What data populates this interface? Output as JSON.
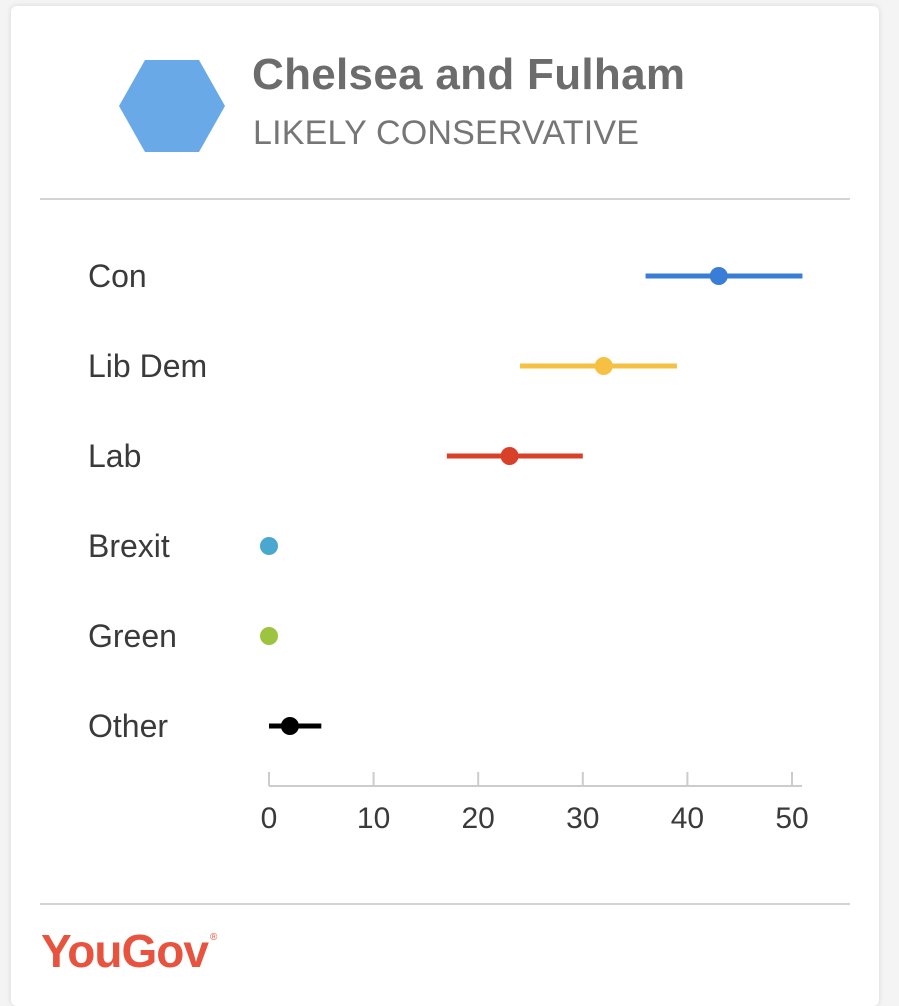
{
  "header": {
    "title": "Chelsea and Fulham",
    "subtitle": "LIKELY CONSERVATIVE",
    "hexagon_color": "#6aa9e8"
  },
  "footer": {
    "logo_text": "YouGov",
    "logo_mark": "®",
    "logo_color": "#e8533f"
  },
  "chart_data": {
    "type": "scatter",
    "orientation": "horizontal",
    "categories": [
      "Con",
      "Lib Dem",
      "Lab",
      "Brexit",
      "Green",
      "Other"
    ],
    "series": [
      {
        "values": [
          43,
          32,
          23,
          0,
          0,
          2
        ],
        "low": [
          36,
          24,
          17,
          0,
          0,
          0
        ],
        "high": [
          51,
          39,
          30,
          0,
          0,
          5
        ],
        "colors": [
          "#3a7dd6",
          "#f6c143",
          "#d9402a",
          "#4aa8cf",
          "#9cc43e",
          "#000000"
        ]
      }
    ],
    "xlim": [
      0,
      50
    ],
    "xticks": [
      0,
      10,
      20,
      30,
      40,
      50
    ],
    "xlabel": "",
    "ylabel": "",
    "grid": false,
    "legend": "none"
  }
}
